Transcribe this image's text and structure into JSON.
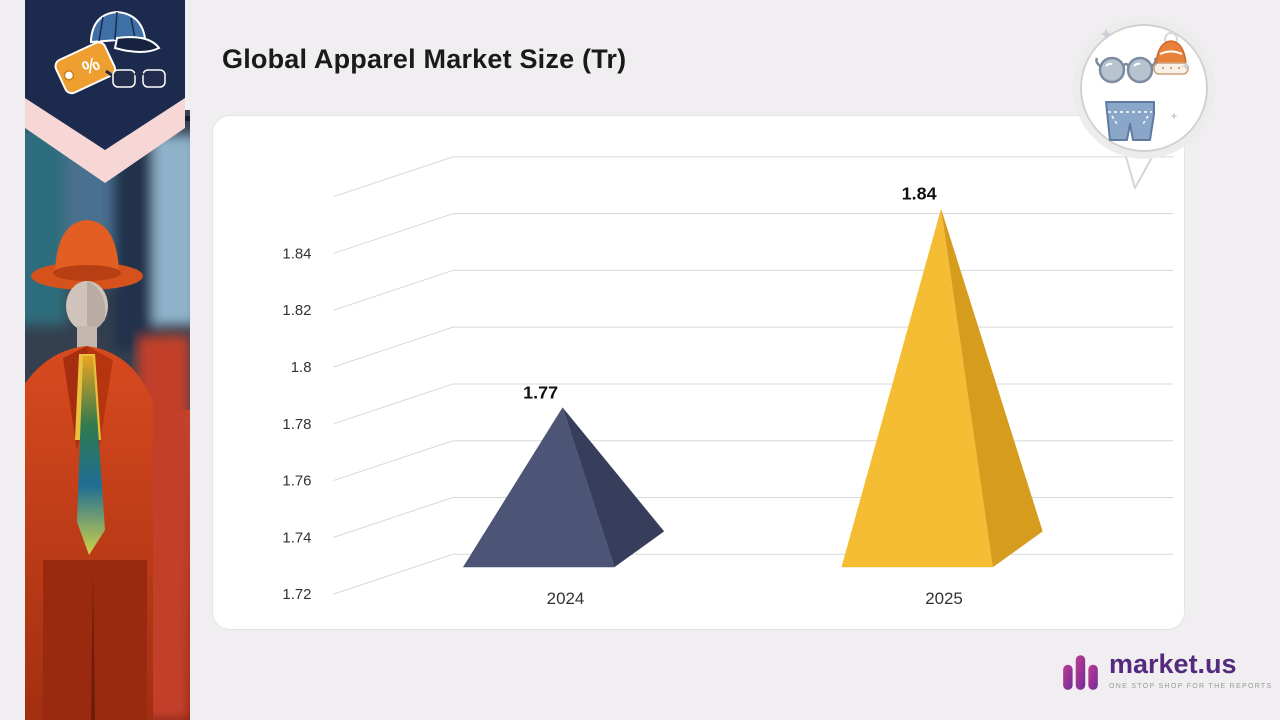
{
  "header": {
    "title": "Global Apparel Market Size (Tr)"
  },
  "chart_data": {
    "type": "bar",
    "style": "3d-pyramid",
    "title": "Global Apparel Market Size (Tr)",
    "categories": [
      "2024",
      "2025"
    ],
    "values": [
      1.77,
      1.84
    ],
    "data_labels": [
      "1.77",
      "1.84"
    ],
    "xlabel": "",
    "ylabel": "",
    "ylim": [
      1.72,
      1.86
    ],
    "ytick_step": 0.02,
    "yticks": [
      "1.84",
      "1.82",
      "1.8",
      "1.78",
      "1.76",
      "1.74",
      "1.72"
    ],
    "grid": true,
    "legend": false,
    "series_colors": [
      {
        "face": "#4d5577",
        "shade": "#373e5b"
      },
      {
        "face": "#f5bd33",
        "shade": "#d59c1d"
      }
    ],
    "gridline_color": "#d8d8d8",
    "tick_color": "#333333",
    "data_label_color": "#111111",
    "category_label_color": "#333333"
  },
  "badges": {
    "top_left": {
      "name": "apparel-category-badge",
      "icons": [
        "baseball-cap-icon",
        "discount-tag-icon",
        "sunglasses-icon"
      ],
      "discount_glyph": "%"
    },
    "top_right": {
      "name": "apparel-pin-badge",
      "icons": [
        "sunglasses-icon",
        "beanie-icon",
        "denim-shorts-icon",
        "sparkle-icons"
      ]
    }
  },
  "branding": {
    "logo_text": "market.us",
    "tagline": "ONE STOP SHOP FOR THE REPORTS"
  }
}
